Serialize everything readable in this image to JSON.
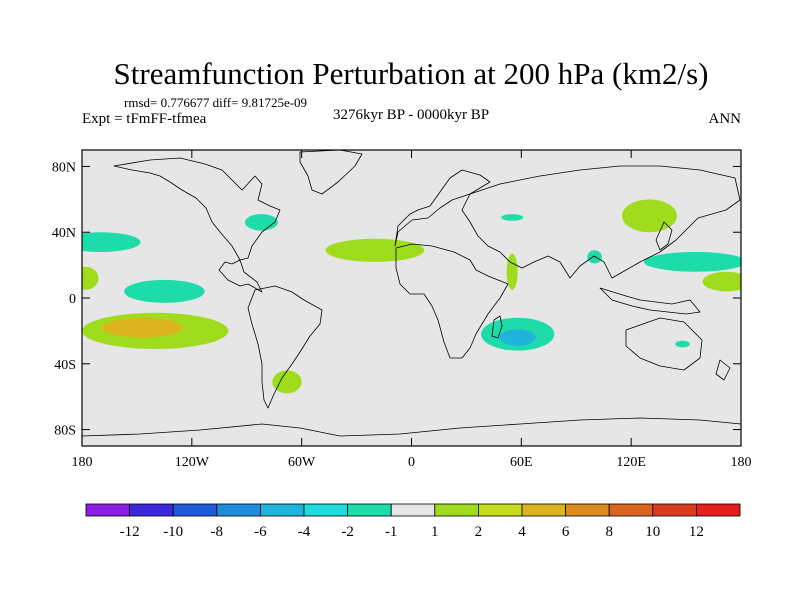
{
  "chart_data": {
    "type": "heatmap",
    "title": "Streamfunction Perturbation at 200 hPa (km2/s)",
    "stats_line": "rmsd= 0.776677 diff= 9.81725e-09",
    "experiment": "Expt = tFmFF-tfmea",
    "period": "3276kyr BP - 0000kyr BP",
    "season": "ANN",
    "x_range": [
      -180,
      180
    ],
    "y_range": [
      -90,
      90
    ],
    "x_ticks": [
      {
        "value": -180,
        "label": "180"
      },
      {
        "value": -120,
        "label": "120W"
      },
      {
        "value": -60,
        "label": "60W"
      },
      {
        "value": 0,
        "label": "0"
      },
      {
        "value": 60,
        "label": "60E"
      },
      {
        "value": 120,
        "label": "120E"
      },
      {
        "value": 180,
        "label": "180"
      }
    ],
    "y_ticks": [
      {
        "value": 80,
        "label": "80N"
      },
      {
        "value": 40,
        "label": "40N"
      },
      {
        "value": 0,
        "label": "0"
      },
      {
        "value": -40,
        "label": "40S"
      },
      {
        "value": -80,
        "label": "80S"
      }
    ],
    "colorbar": {
      "colors": [
        "#8a1ee6",
        "#3c28dc",
        "#1e5adc",
        "#1e8cdc",
        "#1eb4dc",
        "#1edcdc",
        "#1edcaa",
        "#e6e6e6",
        "#a0dc1e",
        "#c8dc1e",
        "#dcb41e",
        "#dc8c1e",
        "#dc641e",
        "#dc3c1e",
        "#e61e1e"
      ],
      "labels": [
        "-12",
        "-10",
        "-8",
        "-6",
        "-4",
        "-2",
        "-1",
        "1",
        "2",
        "4",
        "6",
        "8",
        "10",
        "12"
      ]
    },
    "anomalies": [
      {
        "region": "N Pacific (far west)",
        "lon": -170,
        "lat": 34,
        "rx": 22,
        "ry": 6,
        "level": "-2..-1",
        "color": "#1edcaa"
      },
      {
        "region": "N Pacific (dateline edge)",
        "lon": -178,
        "lat": 12,
        "rx": 7,
        "ry": 7,
        "level": "1..2",
        "color": "#a0dc1e"
      },
      {
        "region": "Tropical E Pacific",
        "lon": -135,
        "lat": 4,
        "rx": 22,
        "ry": 7,
        "level": "-2..-1",
        "color": "#1edcaa"
      },
      {
        "region": "SE Pacific",
        "lon": -140,
        "lat": -20,
        "rx": 40,
        "ry": 11,
        "level": "1..2",
        "color": "#a0dc1e"
      },
      {
        "region": "SE Pacific core",
        "lon": -147,
        "lat": -18,
        "rx": 22,
        "ry": 6,
        "level": "4..6",
        "color": "#dcb41e"
      },
      {
        "region": "Great Lakes",
        "lon": -82,
        "lat": 46,
        "rx": 9,
        "ry": 5,
        "level": "-2..-1",
        "color": "#1edcaa"
      },
      {
        "region": "N Atlantic",
        "lon": -20,
        "lat": 29,
        "rx": 27,
        "ry": 7,
        "level": "1..2",
        "color": "#a0dc1e"
      },
      {
        "region": "Patagonia",
        "lon": -68,
        "lat": -51,
        "rx": 8,
        "ry": 7,
        "level": "1..2",
        "color": "#a0dc1e"
      },
      {
        "region": "Eastern Europe",
        "lon": 55,
        "lat": 49,
        "rx": 6,
        "ry": 2,
        "level": "-2..-1",
        "color": "#1edcaa"
      },
      {
        "region": "Arabian Peninsula",
        "lon": 55,
        "lat": 16,
        "rx": 3,
        "ry": 11,
        "level": "1..2",
        "color": "#a0dc1e"
      },
      {
        "region": "South Indian Ocean",
        "lon": 58,
        "lat": -22,
        "rx": 20,
        "ry": 10,
        "level": "-2..-1",
        "color": "#1edcaa"
      },
      {
        "region": "South Indian Ocean core",
        "lon": 58,
        "lat": -24,
        "rx": 10,
        "ry": 5,
        "level": "-4..-2",
        "color": "#1eb4dc"
      },
      {
        "region": "Indochina",
        "lon": 100,
        "lat": 25,
        "rx": 4,
        "ry": 4,
        "level": "-2..-1",
        "color": "#1edcaa"
      },
      {
        "region": "East Asia",
        "lon": 130,
        "lat": 50,
        "rx": 15,
        "ry": 10,
        "level": "1..2",
        "color": "#a0dc1e"
      },
      {
        "region": "Western Pacific",
        "lon": 155,
        "lat": 22,
        "rx": 28,
        "ry": 6,
        "level": "-2..-1",
        "color": "#1edcaa"
      },
      {
        "region": "Western Pacific (east)",
        "lon": 172,
        "lat": 10,
        "rx": 13,
        "ry": 6,
        "level": "1..2",
        "color": "#a0dc1e"
      },
      {
        "region": "Australia",
        "lon": 148,
        "lat": -28,
        "rx": 4,
        "ry": 2,
        "level": "-2..-1",
        "color": "#1edcaa"
      }
    ]
  }
}
